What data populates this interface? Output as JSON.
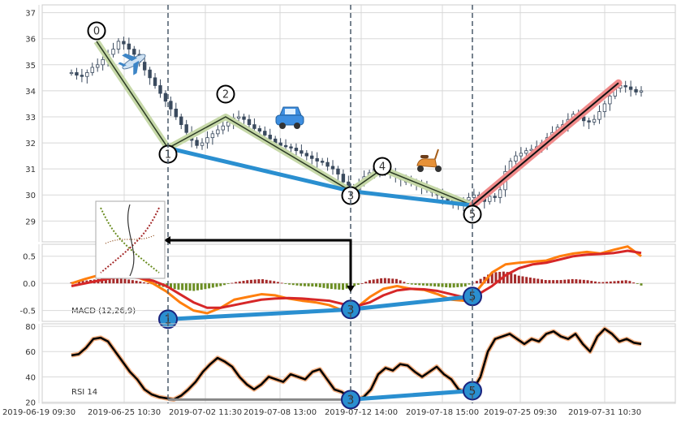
{
  "chart_data": [
    {
      "type": "line",
      "panel": "price",
      "chart_style": "candlestick",
      "x_tick_labels": [
        "2019-06-19 09:30",
        "2019-06-25 10:30",
        "2019-07-02 11:30",
        "2019-07-08 13:00",
        "2019-07-12 14:00",
        "2019-07-18 15:00",
        "2019-07-25 09:30",
        "2019-07-31 10:30"
      ],
      "y_ticks": [
        29,
        30,
        31,
        32,
        33,
        34,
        35,
        36,
        37
      ],
      "ylim": [
        28.2,
        37.3
      ],
      "grid": true,
      "price_series": [
        34.7,
        34.6,
        34.55,
        34.7,
        34.9,
        35.0,
        35.2,
        35.4,
        35.6,
        35.9,
        35.8,
        35.6,
        35.4,
        35.1,
        34.8,
        34.5,
        34.2,
        33.9,
        33.6,
        33.3,
        33.0,
        32.7,
        32.4,
        32.1,
        31.9,
        32.0,
        32.2,
        32.35,
        32.5,
        32.65,
        32.8,
        32.95,
        33.0,
        32.9,
        32.7,
        32.55,
        32.45,
        32.3,
        32.15,
        32.0,
        31.9,
        31.85,
        31.8,
        31.7,
        31.6,
        31.5,
        31.4,
        31.3,
        31.25,
        31.1,
        31.0,
        30.8,
        30.5,
        30.3,
        30.2,
        30.45,
        30.7,
        30.85,
        31.0,
        30.95,
        30.85,
        30.8,
        30.7,
        30.6,
        30.5,
        30.5,
        30.4,
        30.3,
        30.2,
        30.1,
        30.0,
        29.9,
        29.8,
        29.65,
        29.65,
        29.8,
        29.9,
        30.0,
        29.85,
        29.75,
        29.95,
        29.9,
        30.2,
        30.9,
        31.3,
        31.5,
        31.6,
        31.7,
        31.75,
        31.85,
        32.0,
        32.2,
        32.4,
        32.6,
        32.7,
        32.9,
        33.1,
        33.0,
        32.85,
        32.8,
        32.9,
        33.2,
        33.5,
        33.8,
        34.1,
        34.2,
        34.15,
        34.05,
        33.95,
        34.0
      ],
      "pivots": [
        {
          "label": "0",
          "value": 35.9
        },
        {
          "label": "1",
          "value": 31.8
        },
        {
          "label": "2",
          "value": 33.0
        },
        {
          "label": "3",
          "value": 30.15
        },
        {
          "label": "4",
          "value": 31.0
        },
        {
          "label": "5",
          "value": 29.6
        }
      ],
      "divergence_line": {
        "from": "1",
        "via": "3",
        "to": "5",
        "values": [
          31.8,
          30.15,
          29.6
        ]
      },
      "breakout_line": {
        "from_value": 29.6,
        "to_value": 34.3
      },
      "annotations": [
        "airplane-emoji",
        "car-emoji",
        "scooter-emoji"
      ]
    },
    {
      "type": "line",
      "panel": "macd",
      "label": "MACD (12,26,9)",
      "y_ticks": [
        0.5,
        0.0,
        -0.5
      ],
      "ylim": [
        -0.7,
        0.72
      ],
      "series": [
        {
          "color": "#ff7f0e",
          "values": [
            0.0,
            0.08,
            0.15,
            0.2,
            0.18,
            0.1,
            0.0,
            -0.15,
            -0.35,
            -0.5,
            -0.55,
            -0.45,
            -0.3,
            -0.25,
            -0.2,
            -0.22,
            -0.28,
            -0.32,
            -0.35,
            -0.4,
            -0.5,
            -0.45,
            -0.25,
            -0.1,
            -0.05,
            -0.1,
            -0.12,
            -0.2,
            -0.3,
            -0.32,
            -0.1,
            0.2,
            0.35,
            0.38,
            0.4,
            0.42,
            0.5,
            0.55,
            0.58,
            0.55,
            0.62,
            0.68,
            0.5
          ]
        },
        {
          "color": "#d62728",
          "values": [
            -0.05,
            0.0,
            0.05,
            0.1,
            0.12,
            0.1,
            0.05,
            -0.05,
            -0.2,
            -0.35,
            -0.45,
            -0.45,
            -0.4,
            -0.35,
            -0.3,
            -0.28,
            -0.27,
            -0.28,
            -0.3,
            -0.32,
            -0.38,
            -0.42,
            -0.35,
            -0.22,
            -0.13,
            -0.1,
            -0.11,
            -0.14,
            -0.2,
            -0.26,
            -0.2,
            -0.05,
            0.15,
            0.28,
            0.35,
            0.38,
            0.44,
            0.5,
            0.53,
            0.54,
            0.56,
            0.6,
            0.56
          ]
        }
      ],
      "histogram": [
        0.02,
        0.05,
        0.08,
        0.1,
        0.08,
        0.04,
        -0.02,
        -0.08,
        -0.12,
        -0.14,
        -0.1,
        -0.05,
        0.02,
        0.06,
        0.08,
        0.04,
        -0.02,
        -0.05,
        -0.06,
        -0.1,
        -0.12,
        -0.04,
        0.06,
        0.1,
        0.08,
        -0.02,
        -0.04,
        -0.06,
        -0.08,
        -0.06,
        0.06,
        0.2,
        0.22,
        0.14,
        0.1,
        0.06,
        0.06,
        0.08,
        0.06,
        0.02,
        0.04,
        0.06,
        -0.04
      ],
      "divergence_points": [
        {
          "label": "1",
          "value": -0.66
        },
        {
          "label": "3",
          "value": -0.48
        },
        {
          "label": "5",
          "value": -0.24
        }
      ]
    },
    {
      "type": "line",
      "panel": "rsi",
      "label": "RSI 14",
      "y_ticks": [
        20,
        40,
        60,
        80
      ],
      "ylim": [
        19,
        82
      ],
      "series": [
        {
          "color": "#000000",
          "values": [
            57,
            58,
            63,
            70,
            71,
            68,
            60,
            52,
            44,
            38,
            30,
            26,
            24,
            23,
            22,
            25,
            30,
            36,
            44,
            50,
            55,
            52,
            48,
            40,
            34,
            30,
            34,
            40,
            38,
            36,
            42,
            40,
            38,
            44,
            46,
            38,
            30,
            28,
            24,
            22,
            24,
            30,
            42,
            47,
            45,
            50,
            49,
            44,
            40,
            44,
            48,
            42,
            38,
            30,
            28,
            30,
            40,
            60,
            70,
            72,
            74,
            70,
            66,
            70,
            68,
            74,
            76,
            72,
            70,
            74,
            66,
            60,
            72,
            78,
            74,
            68,
            70,
            67,
            66
          ]
        }
      ],
      "divergence_points": [
        {
          "label": "3",
          "value": 22
        },
        {
          "label": "5",
          "value": 29
        }
      ]
    }
  ],
  "colors": {
    "pivot_line": "#2b3a24",
    "pivot_halo": "#c6d8a8",
    "divergence": "#2a8fd0",
    "breakout": "#111111",
    "breakout_halo": "#f08a8a",
    "grid": "#d8d8d8",
    "vline": "#4a5a6a",
    "arrow": "#000000",
    "rsi_gray_line": "#888888"
  },
  "labels": {
    "macd_label": "MACD (12,26,9)",
    "rsi_label": "RSI 14"
  }
}
